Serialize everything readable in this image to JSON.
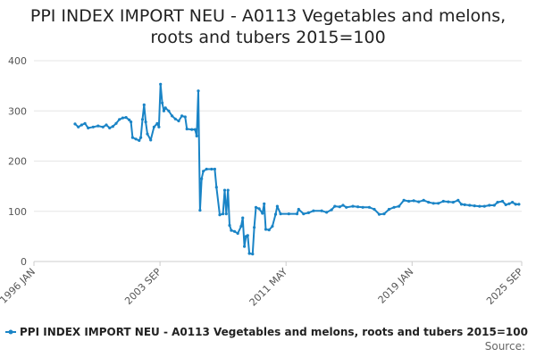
{
  "chart_data": {
    "type": "line",
    "title_lines": [
      "PPI INDEX IMPORT NEU - A0113 Vegetables and melons,",
      "roots and tubers 2015=100"
    ],
    "xlabel": "",
    "ylabel": "",
    "x_tick_labels": [
      "1996 JAN",
      "2003 SEP",
      "2011 MAY",
      "2019 JAN",
      "2025 SEP"
    ],
    "x_tick_values": [
      1996.0,
      2003.667,
      2011.333,
      2019.0,
      2025.667
    ],
    "xlim": [
      1996.0,
      2025.667
    ],
    "ylim": [
      0,
      400
    ],
    "y_ticks": [
      0,
      100,
      200,
      300,
      400
    ],
    "grid": "horizontal",
    "legend_position": "bottom",
    "color": "#1a84c6",
    "series": [
      {
        "name": "PPI INDEX IMPORT NEU - A0113 Vegetables and melons, roots and tubers 2015=100",
        "points": [
          [
            1998.5,
            274
          ],
          [
            1998.7,
            268
          ],
          [
            1998.9,
            272
          ],
          [
            1999.1,
            275
          ],
          [
            1999.3,
            266
          ],
          [
            1999.6,
            268
          ],
          [
            1999.9,
            270
          ],
          [
            2000.2,
            268
          ],
          [
            2000.4,
            272
          ],
          [
            2000.6,
            266
          ],
          [
            2000.8,
            269
          ],
          [
            2001.0,
            275
          ],
          [
            2001.2,
            283
          ],
          [
            2001.4,
            286
          ],
          [
            2001.6,
            287
          ],
          [
            2001.8,
            282
          ],
          [
            2001.9,
            278
          ],
          [
            2002.0,
            247
          ],
          [
            2002.2,
            244
          ],
          [
            2002.4,
            241
          ],
          [
            2002.5,
            247
          ],
          [
            2002.6,
            283
          ],
          [
            2002.7,
            312
          ],
          [
            2002.8,
            278
          ],
          [
            2002.9,
            254
          ],
          [
            2003.1,
            242
          ],
          [
            2003.3,
            268
          ],
          [
            2003.5,
            275
          ],
          [
            2003.6,
            268
          ],
          [
            2003.7,
            353
          ],
          [
            2003.8,
            316
          ],
          [
            2003.9,
            300
          ],
          [
            2004.0,
            306
          ],
          [
            2004.2,
            300
          ],
          [
            2004.4,
            290
          ],
          [
            2004.6,
            284
          ],
          [
            2004.8,
            280
          ],
          [
            2005.0,
            290
          ],
          [
            2005.2,
            288
          ],
          [
            2005.3,
            264
          ],
          [
            2005.6,
            263
          ],
          [
            2005.8,
            263
          ],
          [
            2005.9,
            250
          ],
          [
            2006.0,
            340
          ],
          [
            2006.1,
            102
          ],
          [
            2006.2,
            165
          ],
          [
            2006.3,
            180
          ],
          [
            2006.5,
            184
          ],
          [
            2006.8,
            184
          ],
          [
            2007.0,
            184
          ],
          [
            2007.1,
            148
          ],
          [
            2007.3,
            93
          ],
          [
            2007.5,
            95
          ],
          [
            2007.6,
            142
          ],
          [
            2007.7,
            95
          ],
          [
            2007.8,
            142
          ],
          [
            2007.9,
            72
          ],
          [
            2008.0,
            62
          ],
          [
            2008.2,
            60
          ],
          [
            2008.4,
            56
          ],
          [
            2008.6,
            70
          ],
          [
            2008.7,
            87
          ],
          [
            2008.8,
            30
          ],
          [
            2008.9,
            50
          ],
          [
            2009.0,
            52
          ],
          [
            2009.1,
            16
          ],
          [
            2009.3,
            15
          ],
          [
            2009.4,
            68
          ],
          [
            2009.5,
            108
          ],
          [
            2009.7,
            105
          ],
          [
            2009.9,
            96
          ],
          [
            2010.0,
            115
          ],
          [
            2010.1,
            64
          ],
          [
            2010.3,
            63
          ],
          [
            2010.5,
            70
          ],
          [
            2010.7,
            94
          ],
          [
            2010.8,
            110
          ],
          [
            2011.0,
            95
          ],
          [
            2011.5,
            95
          ],
          [
            2012.0,
            95
          ],
          [
            2012.1,
            104
          ],
          [
            2012.4,
            95
          ],
          [
            2012.7,
            97
          ],
          [
            2013.0,
            101
          ],
          [
            2013.5,
            101
          ],
          [
            2013.8,
            98
          ],
          [
            2014.1,
            103
          ],
          [
            2014.3,
            110
          ],
          [
            2014.6,
            109
          ],
          [
            2014.8,
            112
          ],
          [
            2015.0,
            108
          ],
          [
            2015.4,
            110
          ],
          [
            2015.7,
            109
          ],
          [
            2016.0,
            108
          ],
          [
            2016.4,
            108
          ],
          [
            2016.7,
            104
          ],
          [
            2017.0,
            94
          ],
          [
            2017.3,
            95
          ],
          [
            2017.6,
            104
          ],
          [
            2017.9,
            108
          ],
          [
            2018.2,
            110
          ],
          [
            2018.5,
            122
          ],
          [
            2018.8,
            120
          ],
          [
            2019.1,
            121
          ],
          [
            2019.4,
            119
          ],
          [
            2019.7,
            122
          ],
          [
            2020.0,
            118
          ],
          [
            2020.3,
            116
          ],
          [
            2020.6,
            116
          ],
          [
            2020.9,
            120
          ],
          [
            2021.2,
            119
          ],
          [
            2021.5,
            118
          ],
          [
            2021.8,
            122
          ],
          [
            2022.0,
            114
          ],
          [
            2022.2,
            113
          ],
          [
            2022.5,
            112
          ],
          [
            2022.8,
            111
          ],
          [
            2023.1,
            110
          ],
          [
            2023.4,
            110
          ],
          [
            2023.7,
            112
          ],
          [
            2024.0,
            112
          ],
          [
            2024.2,
            118
          ],
          [
            2024.5,
            120
          ],
          [
            2024.7,
            113
          ],
          [
            2024.9,
            115
          ],
          [
            2025.1,
            118
          ],
          [
            2025.3,
            114
          ],
          [
            2025.5,
            114
          ]
        ]
      }
    ],
    "source_label": "Source:"
  }
}
